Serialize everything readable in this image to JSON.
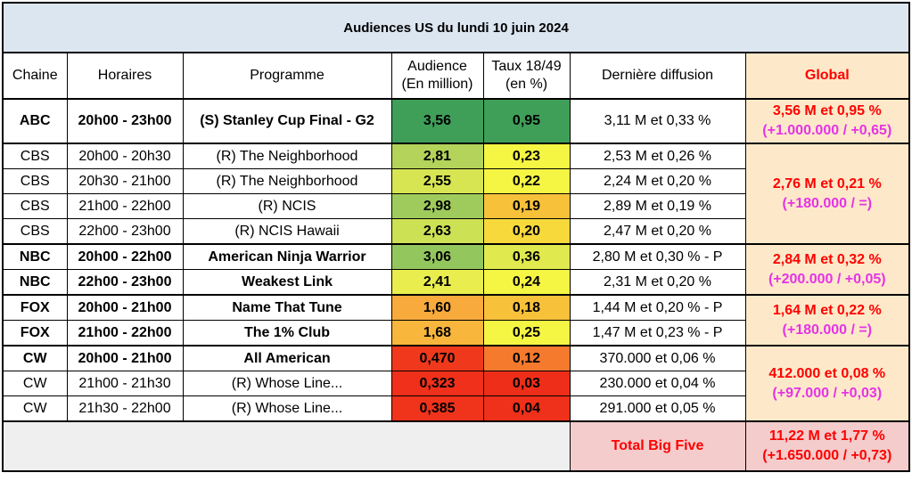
{
  "title": "Audiences US du lundi 10 juin 2024",
  "headers": {
    "chaine": "Chaine",
    "horaires": "Horaires",
    "programme": "Programme",
    "audience_l1": "Audience",
    "audience_l2": "(En million)",
    "taux_l1": "Taux 18/49",
    "taux_l2": "(en %)",
    "derniere": "Dernière diffusion",
    "global": "Global"
  },
  "rows": [
    {
      "chaine": "ABC",
      "horaires": "20h00 - 23h00",
      "programme": "(S) Stanley Cup Final - G2",
      "audience": "3,56",
      "taux": "0,95",
      "derniere": "3,11 M et 0,33 %",
      "bold": true,
      "aud_color": "#3f9f59",
      "taux_color": "#3f9f59"
    },
    {
      "chaine": "CBS",
      "horaires": "20h00 - 20h30",
      "programme": "(R) The Neighborhood",
      "audience": "2,81",
      "taux": "0,23",
      "derniere": "2,53 M et 0,26 %",
      "bold": false,
      "aud_color": "#b3d35a",
      "taux_color": "#f5f544"
    },
    {
      "chaine": "CBS",
      "horaires": "20h30 - 21h00",
      "programme": "(R) The Neighborhood",
      "audience": "2,55",
      "taux": "0,22",
      "derniere": "2,24 M et 0,20 %",
      "bold": false,
      "aud_color": "#d7e552",
      "taux_color": "#f5f544"
    },
    {
      "chaine": "CBS",
      "horaires": "21h00 - 22h00",
      "programme": "(R) NCIS",
      "audience": "2,98",
      "taux": "0,19",
      "derniere": "2,89 M et 0,19 %",
      "bold": false,
      "aud_color": "#9fcb5c",
      "taux_color": "#f8c13a"
    },
    {
      "chaine": "CBS",
      "horaires": "22h00 - 23h00",
      "programme": "(R) NCIS Hawaii",
      "audience": "2,63",
      "taux": "0,20",
      "derniere": "2,47 M et 0,20 %",
      "bold": false,
      "aud_color": "#cde154",
      "taux_color": "#f7d93c"
    },
    {
      "chaine": "NBC",
      "horaires": "20h00 - 22h00",
      "programme": "American Ninja Warrior",
      "audience": "3,06",
      "taux": "0,36",
      "derniere": "2,80 M et 0,30 % - P",
      "bold": true,
      "aud_color": "#93c75e",
      "taux_color": "#e0ea4e"
    },
    {
      "chaine": "NBC",
      "horaires": "22h00 - 23h00",
      "programme": "Weakest Link",
      "audience": "2,41",
      "taux": "0,24",
      "derniere": "2,31 M et 0,20 %",
      "bold": true,
      "aud_color": "#e9ee4e",
      "taux_color": "#f5f544"
    },
    {
      "chaine": "FOX",
      "horaires": "20h00 - 21h00",
      "programme": "Name That Tune",
      "audience": "1,60",
      "taux": "0,18",
      "derniere": "1,44 M et 0,20 % - P",
      "bold": true,
      "aud_color": "#f8aa3c",
      "taux_color": "#f8c13a"
    },
    {
      "chaine": "FOX",
      "horaires": "21h00 - 22h00",
      "programme": "The 1% Club",
      "audience": "1,68",
      "taux": "0,25",
      "derniere": "1,47 M et 0,23 % - P",
      "bold": true,
      "aud_color": "#f8b63c",
      "taux_color": "#f5f544"
    },
    {
      "chaine": "CW",
      "horaires": "20h00 - 21h00",
      "programme": "All American",
      "audience": "0,470",
      "taux": "0,12",
      "derniere": "370.000 et 0,06 %",
      "bold": true,
      "aud_color": "#f0391c",
      "taux_color": "#f57a2e"
    },
    {
      "chaine": "CW",
      "horaires": "21h00 - 21h30",
      "programme": "(R) Whose Line...",
      "audience": "0,323",
      "taux": "0,03",
      "derniere": "230.000 et 0,04 %",
      "bold": false,
      "aud_color": "#f0301a",
      "taux_color": "#ef2e1a"
    },
    {
      "chaine": "CW",
      "horaires": "21h30 - 22h00",
      "programme": "(R) Whose Line...",
      "audience": "0,385",
      "taux": "0,04",
      "derniere": "291.000 et 0,05 %",
      "bold": false,
      "aud_color": "#f0331b",
      "taux_color": "#ef301a"
    }
  ],
  "globals": {
    "abc": {
      "line1": "3,56 M et 0,95 %",
      "line2": "(+1.000.000 / +0,65)"
    },
    "cbs": {
      "line1": "2,76 M et 0,21 %",
      "line2": "(+180.000 / =)"
    },
    "nbc": {
      "line1": "2,84 M et 0,32 %",
      "line2": "(+200.000 / +0,05)"
    },
    "fox": {
      "line1": "1,64 M et 0,22 %",
      "line2": "(+180.000 / =)"
    },
    "cw": {
      "line1": "412.000 et 0,08 %",
      "line2": "(+97.000 / +0,03)"
    }
  },
  "total": {
    "label": "Total Big Five",
    "line1": "11,22 M et 1,77 %",
    "line2": "(+1.650.000 / +0,73)"
  }
}
